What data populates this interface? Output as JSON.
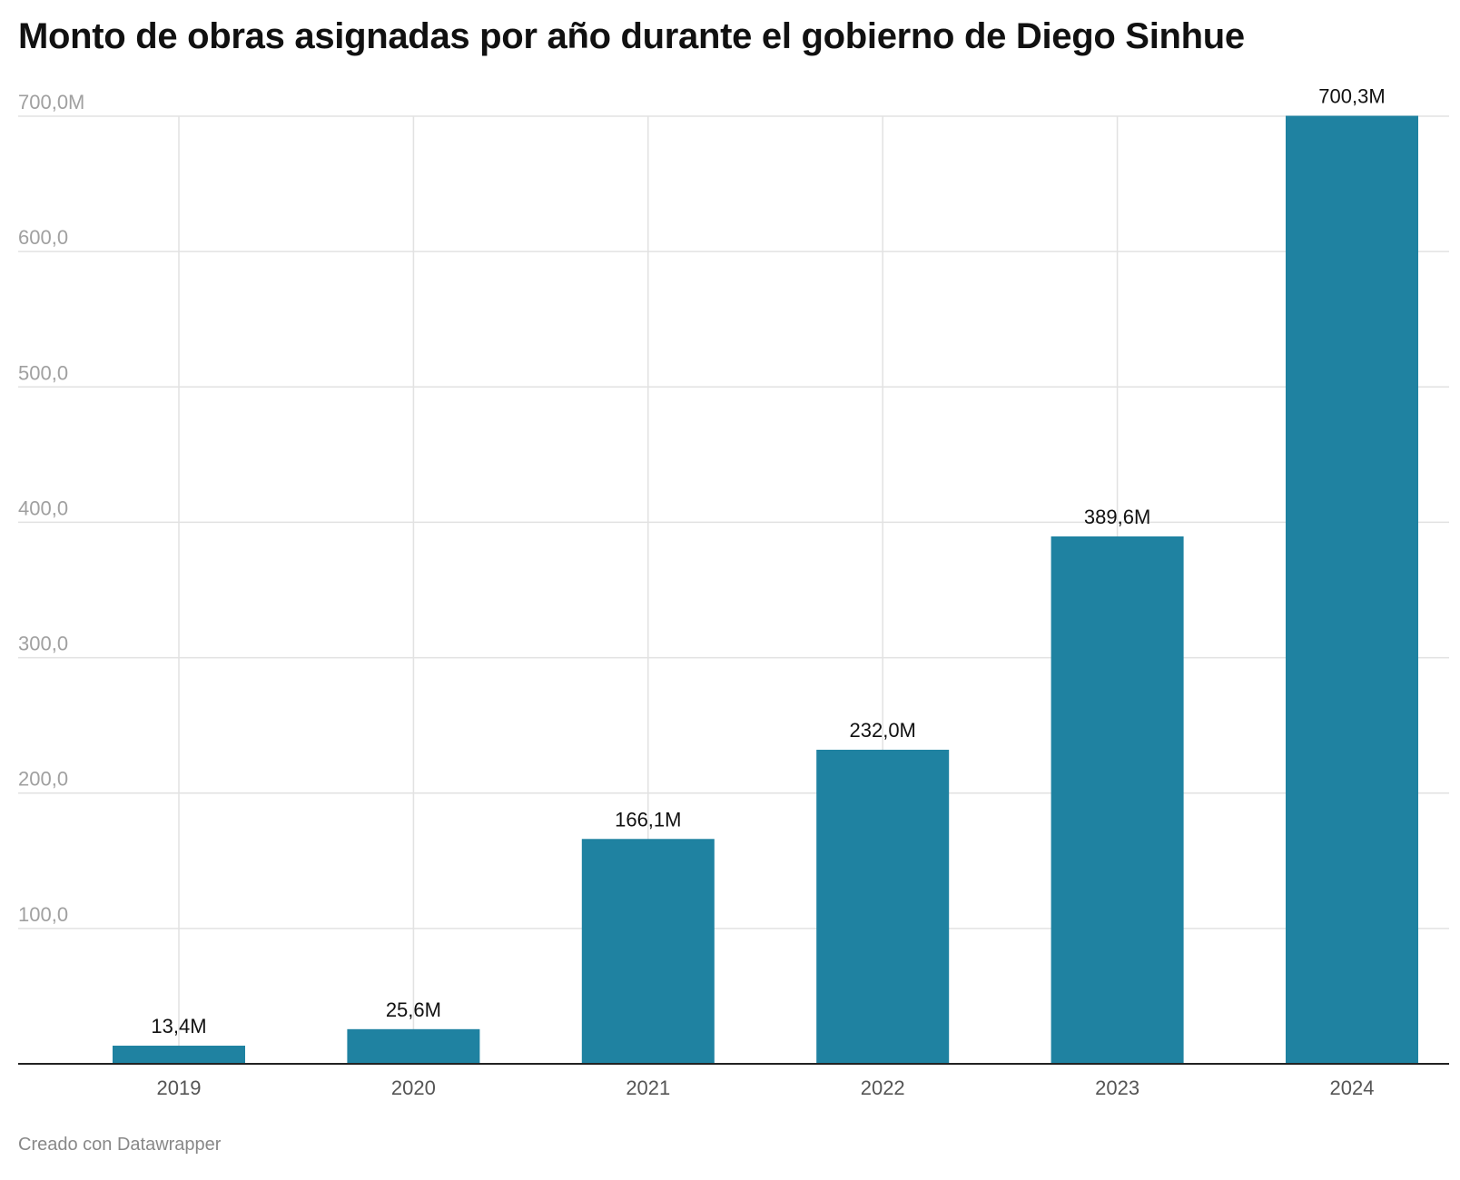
{
  "chart_data": {
    "type": "bar",
    "title": "Monto de obras asignadas por año durante el gobierno de Diego Sinhue",
    "categories": [
      "2019",
      "2020",
      "2021",
      "2022",
      "2023",
      "2024"
    ],
    "values": [
      13.4,
      25.6,
      166.1,
      232.0,
      389.6,
      700.3
    ],
    "value_labels": [
      "13,4M",
      "25,6M",
      "166,1M",
      "232,0M",
      "389,6M",
      "700,3M"
    ],
    "yticks": [
      100,
      200,
      300,
      400,
      500,
      600,
      700
    ],
    "ytick_labels": [
      "100,0",
      "200,0",
      "300,0",
      "400,0",
      "500,0",
      "600,0",
      "700,0M"
    ],
    "ylim": [
      0,
      700
    ],
    "xlabel": "",
    "ylabel": "",
    "grid": true,
    "bar_color": "#1f82a1"
  },
  "footer": {
    "credit": "Creado con Datawrapper"
  }
}
